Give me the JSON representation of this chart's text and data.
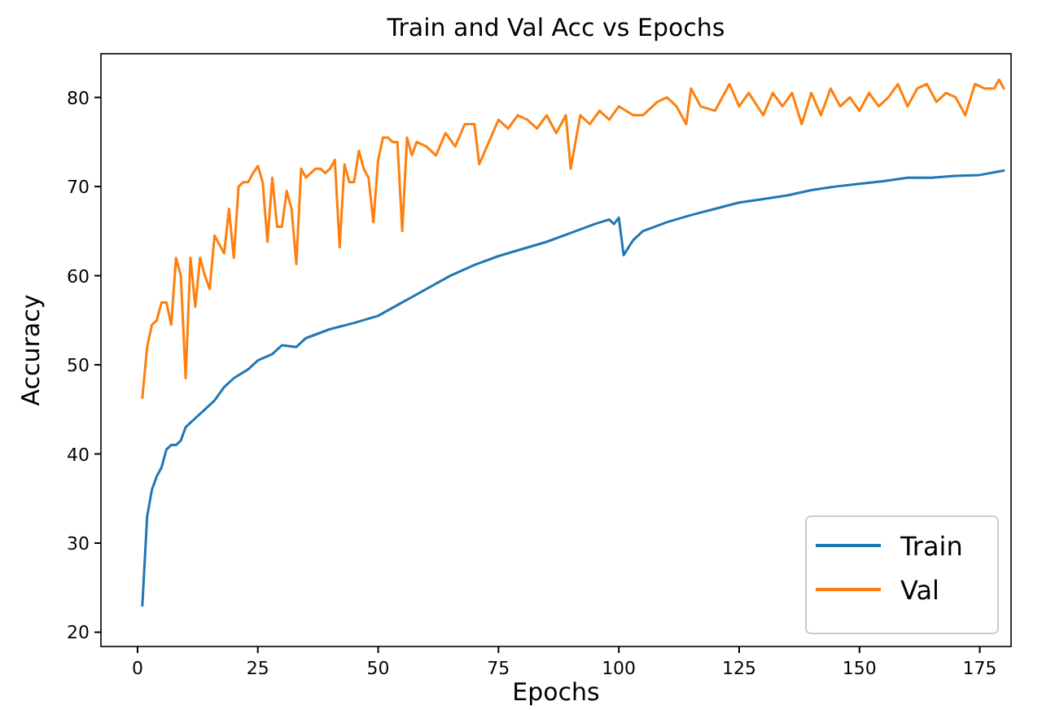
{
  "chart_data": {
    "type": "line",
    "title": "Train and Val Acc vs Epochs",
    "xlabel": "Epochs",
    "ylabel": "Accuracy",
    "xlim": [
      -7.6,
      181.5
    ],
    "ylim": [
      18.4,
      84.9
    ],
    "xticks": [
      0,
      25,
      50,
      75,
      100,
      125,
      150,
      175
    ],
    "yticks": [
      20,
      30,
      40,
      50,
      60,
      70,
      80
    ],
    "legend": "bottom right",
    "grid": false,
    "series": [
      {
        "name": "Train",
        "color": "#1f77b4",
        "x": [
          1,
          2,
          3,
          4,
          5,
          6,
          7,
          8,
          9,
          10,
          11,
          12,
          14,
          16,
          18,
          20,
          23,
          25,
          28,
          30,
          33,
          35,
          40,
          45,
          50,
          55,
          60,
          65,
          70,
          75,
          80,
          85,
          90,
          95,
          98,
          99,
          100,
          101,
          103,
          105,
          110,
          115,
          120,
          125,
          130,
          135,
          140,
          145,
          150,
          155,
          160,
          165,
          170,
          175,
          180
        ],
        "values": [
          23,
          33,
          36,
          37.5,
          38.5,
          40.5,
          41,
          41,
          41.5,
          43,
          43.5,
          44,
          45,
          46,
          47.5,
          48.5,
          49.5,
          50.5,
          51.2,
          52.2,
          52,
          53,
          54,
          54.7,
          55.5,
          57,
          58.5,
          60,
          61.2,
          62.2,
          63,
          63.8,
          64.8,
          65.8,
          66.3,
          65.8,
          66.5,
          62.3,
          64,
          65,
          66,
          66.8,
          67.5,
          68.2,
          68.6,
          69,
          69.6,
          70,
          70.3,
          70.6,
          71,
          71,
          71.2,
          71.3,
          71.8
        ]
      },
      {
        "name": "Val",
        "color": "#ff7f0e",
        "x": [
          1,
          2,
          3,
          4,
          5,
          6,
          7,
          8,
          9,
          10,
          11,
          12,
          13,
          14,
          15,
          16,
          17,
          18,
          19,
          20,
          21,
          22,
          23,
          24,
          25,
          26,
          27,
          28,
          29,
          30,
          31,
          32,
          33,
          34,
          35,
          36,
          37,
          38,
          39,
          40,
          41,
          42,
          43,
          44,
          45,
          46,
          47,
          48,
          49,
          50,
          51,
          52,
          53,
          54,
          55,
          56,
          57,
          58,
          60,
          62,
          64,
          66,
          68,
          70,
          71,
          73,
          75,
          77,
          79,
          81,
          83,
          85,
          87,
          89,
          90,
          92,
          94,
          96,
          98,
          100,
          103,
          105,
          108,
          110,
          112,
          114,
          115,
          117,
          120,
          123,
          125,
          127,
          130,
          132,
          134,
          136,
          138,
          140,
          142,
          144,
          146,
          148,
          150,
          152,
          154,
          156,
          158,
          160,
          162,
          164,
          166,
          168,
          170,
          172,
          174,
          176,
          178,
          179,
          180
        ],
        "values": [
          46.3,
          52,
          54.5,
          55,
          57,
          57,
          54.5,
          62,
          60,
          48.5,
          62,
          56.5,
          62,
          60,
          58.5,
          64.5,
          63.5,
          62.5,
          67.5,
          62,
          70,
          70.5,
          70.5,
          71.5,
          72.3,
          70.5,
          63.8,
          71,
          65.5,
          65.5,
          69.5,
          67.5,
          61.3,
          72,
          71,
          71.5,
          72,
          72,
          71.5,
          72,
          73,
          63.2,
          72.5,
          70.5,
          70.5,
          74,
          72,
          71,
          66,
          73,
          75.5,
          75.5,
          75,
          75,
          65,
          75.5,
          73.5,
          75,
          74.5,
          73.5,
          76,
          74.5,
          77,
          77,
          72.5,
          75,
          77.5,
          76.5,
          78,
          77.5,
          76.5,
          78,
          76,
          78,
          72,
          78,
          77,
          78.5,
          77.5,
          79,
          78,
          78,
          79.5,
          80,
          79,
          77,
          81,
          79,
          78.5,
          81.5,
          79,
          80.5,
          78,
          80.5,
          79,
          80.5,
          77,
          80.5,
          78,
          81,
          79,
          80,
          78.5,
          80.5,
          79,
          80,
          81.5,
          79,
          81,
          81.5,
          79.5,
          80.5,
          80,
          78,
          81.5,
          81,
          81,
          82,
          81
        ]
      }
    ]
  }
}
